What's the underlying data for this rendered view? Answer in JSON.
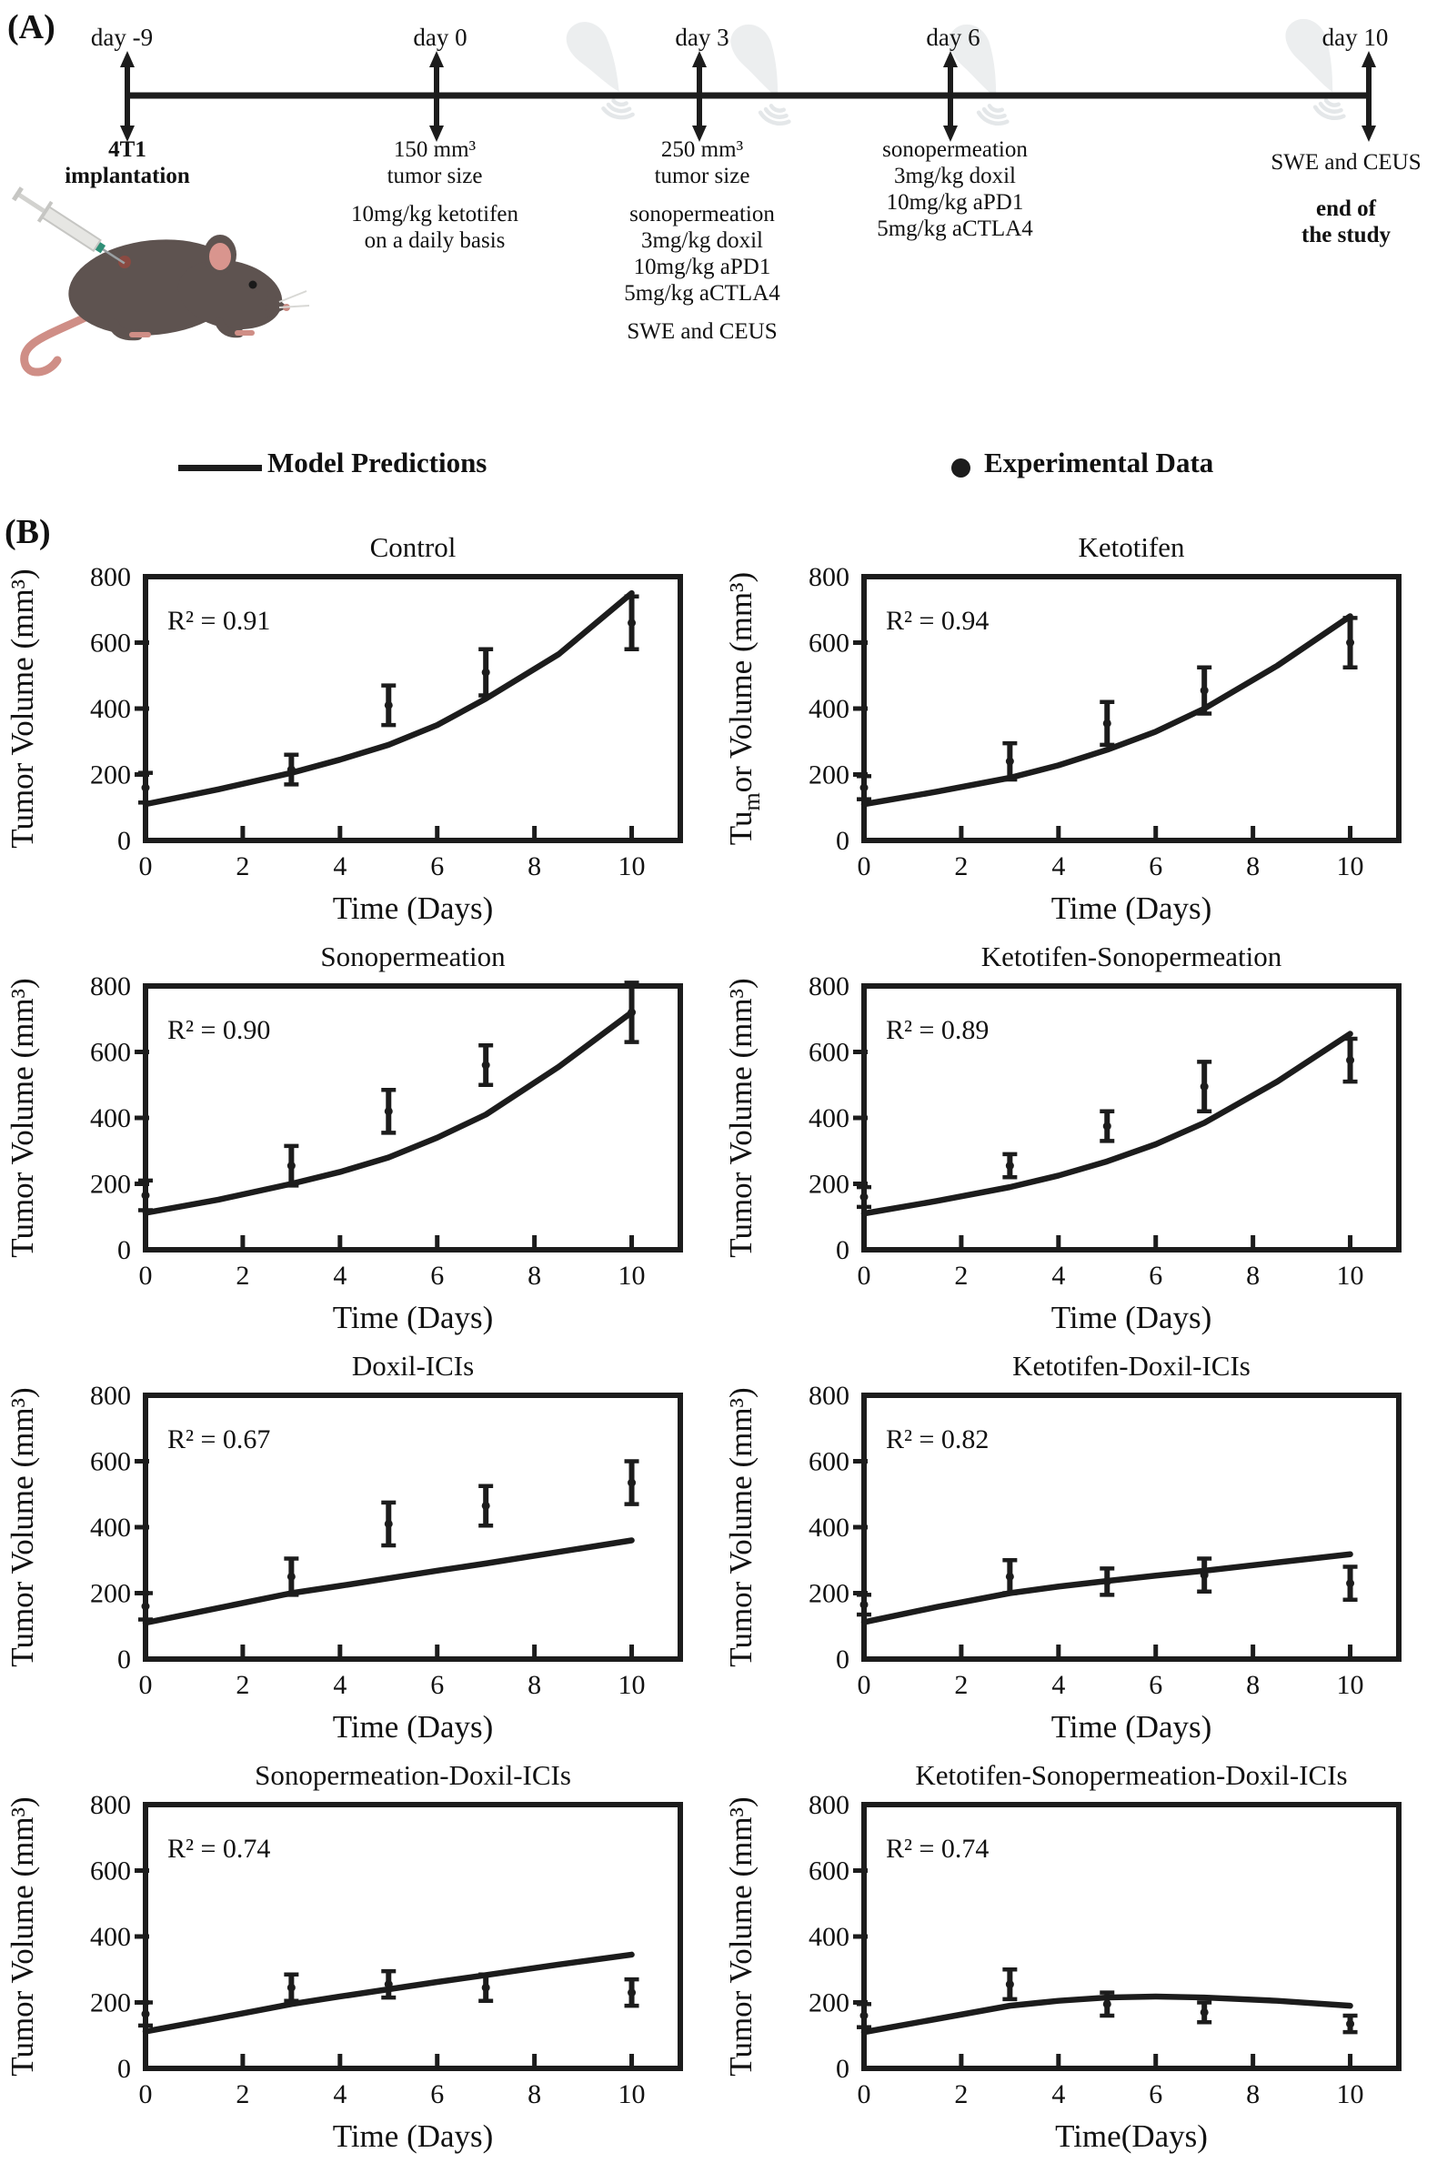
{
  "panel_a": {
    "label": "(A)",
    "timeline": {
      "events": [
        {
          "day": "day -9",
          "block1": [
            "4T1",
            "implantation"
          ]
        },
        {
          "day": "day 0",
          "block1": [
            "150 mm³",
            "tumor size"
          ],
          "block2": [
            "10mg/kg ketotifen",
            "on a daily basis"
          ]
        },
        {
          "day": "day 3",
          "block1": [
            "250 mm³",
            "tumor size"
          ],
          "block2": [
            "sonopermeation",
            "3mg/kg doxil",
            "10mg/kg aPD1",
            "5mg/kg aCTLA4"
          ],
          "block3": [
            "SWE and CEUS"
          ]
        },
        {
          "day": "day 6",
          "block1": [
            "sonopermeation",
            "3mg/kg doxil",
            "10mg/kg aPD1",
            "5mg/kg aCTLA4"
          ]
        },
        {
          "day": "day 10",
          "block1": [
            "SWE and CEUS"
          ],
          "block2": [
            "end of",
            "the study"
          ]
        }
      ]
    }
  },
  "legend": {
    "model_label": "Model Predictions",
    "experimental_label": "Experimental Data"
  },
  "panel_b_label": "(B)",
  "colors": {
    "ink": "#1c1c1c",
    "probe_watermark": "#eceeef",
    "mouse_body": "#5e5350",
    "mouse_pink": "#d9958e"
  },
  "chart_data": [
    {
      "type": "line",
      "title": "Control",
      "r2_label": "R² = 0.91",
      "xlabel": "Time (Days)",
      "ylabel": "Tumor Volume (mm³)",
      "xlim": [
        0,
        11
      ],
      "ylim": [
        0,
        800
      ],
      "xticks": [
        0,
        2,
        4,
        6,
        8,
        10
      ],
      "yticks": [
        0,
        200,
        400,
        600,
        800
      ],
      "model_line": {
        "x": [
          0,
          1.5,
          3,
          4,
          5,
          6,
          7,
          8.5,
          10
        ],
        "y": [
          110,
          155,
          205,
          245,
          290,
          350,
          430,
          565,
          750
        ]
      },
      "experimental": {
        "x": [
          0,
          3,
          5,
          7,
          10
        ],
        "y": [
          160,
          215,
          410,
          510,
          660
        ],
        "yerr": [
          45,
          45,
          60,
          70,
          80
        ]
      }
    },
    {
      "type": "line",
      "title": "Ketotifen",
      "r2_label": "R² = 0.94",
      "xlabel": "Time (Days)",
      "ylabel": "Tumor Volume (mm³)",
      "ylabel_glitch": [
        "Tu",
        "m",
        "or Volume (mm³)"
      ],
      "xlim": [
        0,
        11
      ],
      "ylim": [
        0,
        800
      ],
      "xticks": [
        0,
        2,
        4,
        6,
        8,
        10
      ],
      "yticks": [
        0,
        200,
        400,
        600,
        800
      ],
      "model_line": {
        "x": [
          0,
          1.5,
          3,
          4,
          5,
          6,
          7,
          8.5,
          10
        ],
        "y": [
          110,
          148,
          190,
          228,
          275,
          330,
          400,
          530,
          680
        ]
      },
      "experimental": {
        "x": [
          0,
          3,
          5,
          7,
          10
        ],
        "y": [
          160,
          240,
          355,
          455,
          600
        ],
        "yerr": [
          35,
          55,
          65,
          70,
          75
        ]
      }
    },
    {
      "type": "line",
      "title": "Sonopermeation",
      "r2_label": "R² = 0.90",
      "xlabel": "Time (Days)",
      "ylabel": "Tumor Volume (mm³)",
      "xlim": [
        0,
        11
      ],
      "ylim": [
        0,
        800
      ],
      "xticks": [
        0,
        2,
        4,
        6,
        8,
        10
      ],
      "yticks": [
        0,
        200,
        400,
        600,
        800
      ],
      "model_line": {
        "x": [
          0,
          1.5,
          3,
          4,
          5,
          6,
          7,
          8.5,
          10
        ],
        "y": [
          112,
          152,
          200,
          236,
          280,
          340,
          410,
          555,
          720
        ]
      },
      "experimental": {
        "x": [
          0,
          3,
          5,
          7,
          10
        ],
        "y": [
          165,
          255,
          420,
          560,
          720
        ],
        "yerr": [
          45,
          60,
          65,
          60,
          90
        ]
      }
    },
    {
      "type": "line",
      "title": "Ketotifen-Sonopermeation",
      "r2_label": "R² = 0.89",
      "xlabel": "Time (Days)",
      "ylabel": "Tumor Volume (mm³)",
      "xlim": [
        0,
        11
      ],
      "ylim": [
        0,
        800
      ],
      "xticks": [
        0,
        2,
        4,
        6,
        8,
        10
      ],
      "yticks": [
        0,
        200,
        400,
        600,
        800
      ],
      "model_line": {
        "x": [
          0,
          1.5,
          3,
          4,
          5,
          6,
          7,
          8.5,
          10
        ],
        "y": [
          110,
          148,
          190,
          225,
          268,
          320,
          385,
          510,
          655
        ]
      },
      "experimental": {
        "x": [
          0,
          3,
          5,
          7,
          10
        ],
        "y": [
          160,
          255,
          375,
          495,
          575
        ],
        "yerr": [
          30,
          35,
          45,
          75,
          65
        ]
      }
    },
    {
      "type": "line",
      "title": "Doxil-ICIs",
      "r2_label": "R² = 0.67",
      "xlabel": "Time (Days)",
      "ylabel": "Tumor Volume (mm³)",
      "xlim": [
        0,
        11
      ],
      "ylim": [
        0,
        800
      ],
      "xticks": [
        0,
        2,
        4,
        6,
        8,
        10
      ],
      "yticks": [
        0,
        200,
        400,
        600,
        800
      ],
      "model_line": {
        "x": [
          0,
          1.5,
          3,
          4,
          5,
          6,
          7,
          8.5,
          10
        ],
        "y": [
          110,
          155,
          200,
          222,
          245,
          268,
          290,
          325,
          360
        ]
      },
      "experimental": {
        "x": [
          0,
          3,
          5,
          7,
          10
        ],
        "y": [
          160,
          250,
          410,
          465,
          535
        ],
        "yerr": [
          40,
          55,
          65,
          60,
          65
        ]
      }
    },
    {
      "type": "line",
      "title": "Ketotifen-Doxil-ICIs",
      "r2_label": "R² = 0.82",
      "xlabel": "Time (Days)",
      "ylabel": "Tumor Volume (mm³)",
      "xlim": [
        0,
        11
      ],
      "ylim": [
        0,
        800
      ],
      "xticks": [
        0,
        2,
        4,
        6,
        8,
        10
      ],
      "yticks": [
        0,
        200,
        400,
        600,
        800
      ],
      "model_line": {
        "x": [
          0,
          1.5,
          3,
          4,
          5,
          6,
          7,
          8.5,
          10
        ],
        "y": [
          112,
          158,
          200,
          220,
          237,
          253,
          268,
          293,
          318
        ]
      },
      "experimental": {
        "x": [
          0,
          3,
          5,
          7,
          10
        ],
        "y": [
          165,
          250,
          235,
          255,
          230
        ],
        "yerr": [
          30,
          50,
          40,
          50,
          50
        ]
      }
    },
    {
      "type": "line",
      "title": "Sonopermeation-Doxil-ICIs",
      "r2_label": "R² = 0.74",
      "xlabel": "Time (Days)",
      "ylabel": "Tumor Volume (mm³)",
      "xlim": [
        0,
        11
      ],
      "ylim": [
        0,
        800
      ],
      "xticks": [
        0,
        2,
        4,
        6,
        8,
        10
      ],
      "yticks": [
        0,
        200,
        400,
        600,
        800
      ],
      "model_line": {
        "x": [
          0,
          1.5,
          3,
          4,
          5,
          6,
          7,
          8.5,
          10
        ],
        "y": [
          112,
          153,
          195,
          218,
          240,
          262,
          283,
          315,
          345
        ]
      },
      "experimental": {
        "x": [
          0,
          3,
          5,
          7,
          10
        ],
        "y": [
          165,
          245,
          255,
          245,
          230
        ],
        "yerr": [
          35,
          40,
          40,
          40,
          40
        ]
      }
    },
    {
      "type": "line",
      "title": "Ketotifen-Sonopermeation-Doxil-ICIs",
      "r2_label": "R² = 0.74",
      "xlabel": "Time(Days)",
      "ylabel": "Tumor Volume (mm³)",
      "xlim": [
        0,
        11
      ],
      "ylim": [
        0,
        800
      ],
      "xticks": [
        0,
        2,
        4,
        6,
        8,
        10
      ],
      "yticks": [
        0,
        200,
        400,
        600,
        800
      ],
      "model_line": {
        "x": [
          0,
          1.5,
          3,
          4,
          5,
          6,
          7,
          8.5,
          10
        ],
        "y": [
          110,
          150,
          190,
          205,
          215,
          218,
          215,
          205,
          190
        ]
      },
      "experimental": {
        "x": [
          0,
          3,
          5,
          7,
          10
        ],
        "y": [
          160,
          255,
          195,
          170,
          135
        ],
        "yerr": [
          35,
          45,
          35,
          30,
          25
        ]
      }
    }
  ]
}
